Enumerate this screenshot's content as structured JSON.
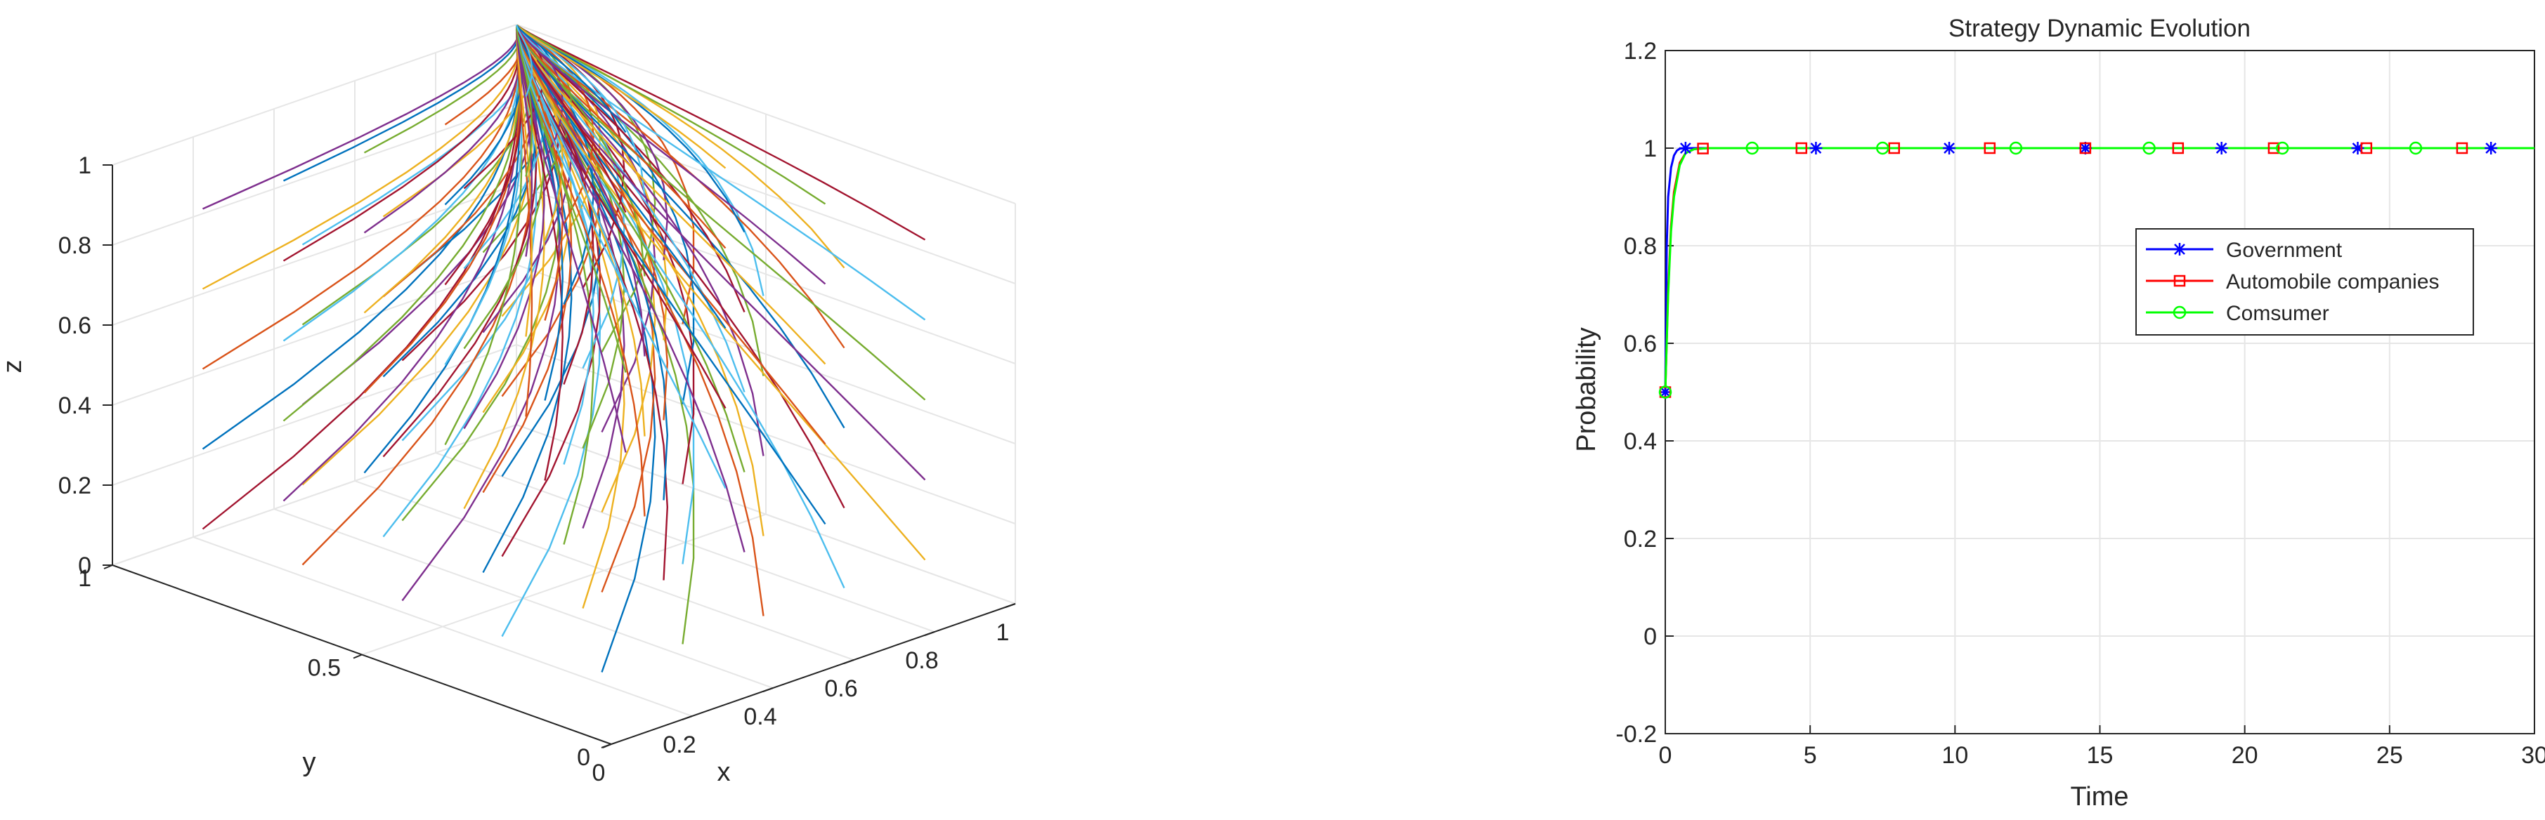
{
  "chart_data": [
    {
      "type": "line",
      "projection": "3d",
      "xlabel": "x",
      "ylabel": "y",
      "zlabel": "z",
      "xlim": [
        0,
        1
      ],
      "ylim": [
        0,
        1
      ],
      "zlim": [
        0,
        1
      ],
      "x_ticks": [
        "0",
        "0.2",
        "0.4",
        "0.6",
        "0.8",
        "1"
      ],
      "y_ticks": [
        "0",
        "0.5",
        "1"
      ],
      "z_ticks": [
        "0",
        "0.2",
        "0.4",
        "0.6",
        "0.8",
        "1"
      ],
      "grid": true,
      "converges_to": [
        1,
        1,
        1
      ],
      "initial_values": [
        0.1,
        0.3,
        0.5,
        0.7,
        0.9
      ],
      "palette": [
        "#0072BD",
        "#D95319",
        "#EDB120",
        "#7E2F8E",
        "#77AC30",
        "#4DBEEE",
        "#A2142F"
      ]
    },
    {
      "type": "line",
      "title": "Strategy Dynamic Evolution",
      "xlabel": "Time",
      "ylabel": "Probability",
      "xlim": [
        0,
        30
      ],
      "ylim": [
        -0.2,
        1.2
      ],
      "x_ticks": [
        "0",
        "5",
        "10",
        "15",
        "20",
        "25",
        "30"
      ],
      "y_ticks": [
        "-0.2",
        "0",
        "0.2",
        "0.4",
        "0.6",
        "0.8",
        "1",
        "1.2"
      ],
      "grid": true,
      "legend_position": "right",
      "series": [
        {
          "name": "Government",
          "color": "#0000FF",
          "marker": "asterisk",
          "x": [
            0,
            0.05,
            0.1,
            0.2,
            0.3,
            0.4,
            0.5,
            0.7,
            1.0,
            30
          ],
          "y": [
            0.5,
            0.8,
            0.9,
            0.96,
            0.985,
            0.995,
            0.999,
            1.0,
            1.0,
            1.0
          ],
          "marker_x": [
            0,
            0.7,
            5.2,
            9.8,
            14.5,
            19.2,
            23.9,
            28.5
          ]
        },
        {
          "name": "Automobile companies",
          "color": "#FF0000",
          "marker": "square",
          "x": [
            0,
            0.1,
            0.2,
            0.3,
            0.5,
            0.7,
            1.0,
            1.5,
            30
          ],
          "y": [
            0.5,
            0.71,
            0.84,
            0.91,
            0.97,
            0.99,
            0.998,
            1.0,
            1.0
          ],
          "marker_x": [
            0,
            1.3,
            4.7,
            7.9,
            11.2,
            14.5,
            17.7,
            21.0,
            24.2,
            27.5
          ]
        },
        {
          "name": "Comsumer",
          "color": "#00FF00",
          "marker": "circle",
          "x": [
            0,
            0.1,
            0.2,
            0.3,
            0.5,
            0.7,
            1.0,
            1.5,
            30
          ],
          "y": [
            0.5,
            0.7,
            0.83,
            0.9,
            0.965,
            0.99,
            0.998,
            1.0,
            1.0
          ],
          "marker_x": [
            0,
            3.0,
            7.5,
            12.1,
            16.7,
            21.3,
            25.9
          ]
        }
      ]
    }
  ]
}
